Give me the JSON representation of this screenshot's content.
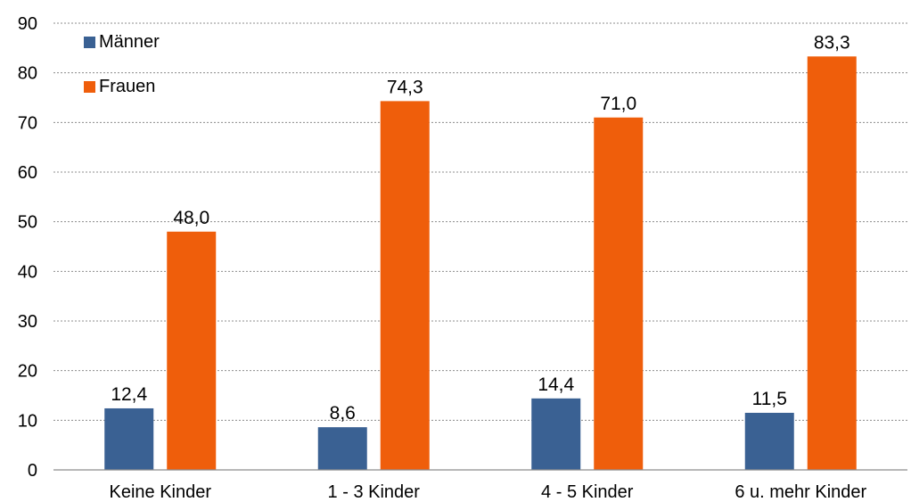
{
  "chart_data": {
    "type": "bar",
    "categories": [
      "Keine Kinder",
      "1 - 3 Kinder",
      "4 - 5 Kinder",
      "6 u. mehr Kinder"
    ],
    "series": [
      {
        "name": "Männer",
        "color": "#3a6193",
        "values": [
          12.4,
          8.6,
          14.4,
          11.5
        ],
        "labels": [
          "12,4",
          "8,6",
          "14,4",
          "11,5"
        ]
      },
      {
        "name": "Frauen",
        "color": "#ef5e0b",
        "values": [
          48.0,
          74.3,
          71.0,
          83.3
        ],
        "labels": [
          "48,0",
          "74,3",
          "71,0",
          "83,3"
        ]
      }
    ],
    "yticks": [
      "0",
      "10",
      "20",
      "30",
      "40",
      "50",
      "60",
      "70",
      "80",
      "90"
    ],
    "ylim": [
      0,
      90
    ],
    "grid": true,
    "legend": "top-left"
  }
}
